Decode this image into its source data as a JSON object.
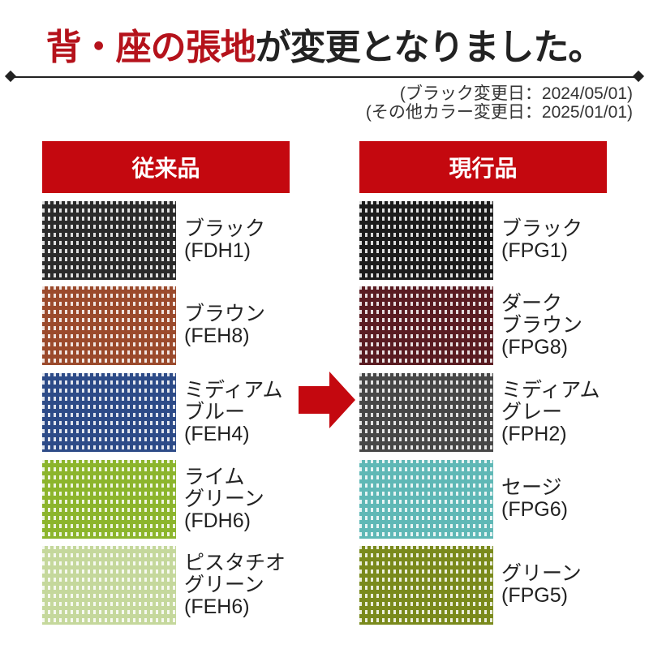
{
  "title": {
    "red": "背・座の張地",
    "black": "が変更となりました。"
  },
  "dates": [
    "(ブラック変更日：2024/05/01)",
    "(その他カラー変更日：2025/01/01)"
  ],
  "old": {
    "label": "従来品",
    "items": [
      {
        "name": "ブラック",
        "code": "(FDH1)",
        "color": "#2b2b2b"
      },
      {
        "name": "ブラウン",
        "code": "(FEH8)",
        "color": "#9b4a2c"
      },
      {
        "name": "ミディアム\nブルー",
        "code": "(FEH4)",
        "color": "#2d4b88"
      },
      {
        "name": "ライム\nグリーン",
        "code": "(FDH6)",
        "color": "#8cb52c"
      },
      {
        "name": "ピスタチオ\nグリーン",
        "code": "(FEH6)",
        "color": "#c5d89c"
      }
    ]
  },
  "new": {
    "label": "現行品",
    "items": [
      {
        "name": "ブラック",
        "code": "(FPG1)",
        "color": "#1c1c1c"
      },
      {
        "name": "ダーク\nブラウン",
        "code": "(FPG8)",
        "color": "#5a1c22"
      },
      {
        "name": "ミディアム\nグレー",
        "code": "(FPH2)",
        "color": "#474747"
      },
      {
        "name": "セージ",
        "code": "(FPG6)",
        "color": "#5fb8b6"
      },
      {
        "name": "グリーン",
        "code": "(FPG5)",
        "color": "#7a8a1c"
      }
    ]
  },
  "arrow_color": "#c4080f"
}
